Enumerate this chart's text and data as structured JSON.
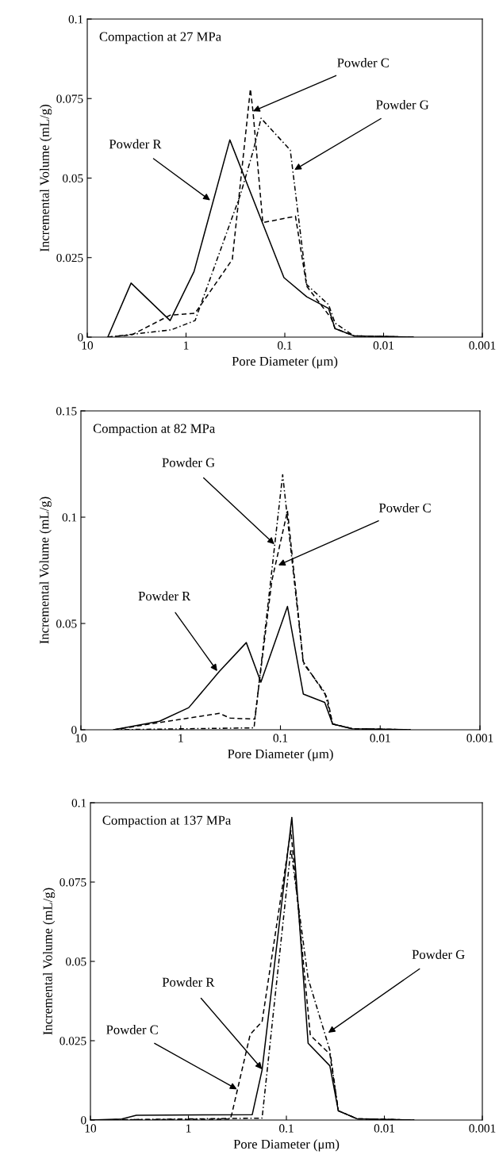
{
  "chart_data": [
    {
      "type": "line",
      "title": "Compaction at 27 MPa",
      "xlabel": "Pore Diameter (μm)",
      "ylabel": "Incremental Volume (mL/g)",
      "log": "x",
      "xlim": [
        10,
        0.001
      ],
      "xticks": [
        10,
        1,
        0.1,
        0.01,
        0.001
      ],
      "ylim": [
        0,
        0.1
      ],
      "yticks": [
        0,
        0.025,
        0.05,
        0.075,
        0.1
      ],
      "grid": false,
      "marker": "none",
      "series": [
        {
          "color": "#000000",
          "line_style": "solid",
          "x": [
            6.2,
            3.6,
            1.45,
            0.83,
            0.36,
            0.102,
            0.06,
            0.036,
            0.031,
            0.02,
            0.005
          ],
          "values": [
            0,
            0.017,
            0.0052,
            0.0206,
            0.062,
            0.0187,
            0.0127,
            0.009,
            0.0027,
            0.0004,
            0
          ]
        },
        {
          "color": "#000000",
          "line_style": "dashed",
          "x": [
            6.2,
            3.55,
            1.45,
            0.81,
            0.34,
            0.223,
            0.21,
            0.167,
            0.078,
            0.06,
            0.034,
            0.031,
            0.02,
            0.005
          ],
          "values": [
            0,
            0.0007,
            0.0069,
            0.0075,
            0.0244,
            0.078,
            0.071,
            0.036,
            0.038,
            0.016,
            0.006,
            0.0027,
            0.0004,
            0
          ]
        },
        {
          "color": "#000000",
          "line_style": "dashdot",
          "x": [
            6.2,
            1.41,
            0.81,
            0.28,
            0.207,
            0.174,
            0.088,
            0.06,
            0.036,
            0.031,
            0.02,
            0.005
          ],
          "values": [
            0,
            0.0023,
            0.0052,
            0.045,
            0.059,
            0.0688,
            0.0588,
            0.0165,
            0.0102,
            0.0044,
            0.0004,
            0
          ]
        }
      ],
      "annotations": [
        {
          "text": "Powder R",
          "x": 0.57,
          "y": 0.043
        },
        {
          "text": "Powder C",
          "x": 0.21,
          "y": 0.071
        },
        {
          "text": "Powder G",
          "x": 0.08,
          "y": 0.0526
        }
      ]
    },
    {
      "type": "line",
      "title": "Compaction at 82 MPa",
      "xlabel": "Pore Diameter (μm)",
      "ylabel": "Incremental Volume (mL/g)",
      "log": "x",
      "xlim": [
        10,
        0.001
      ],
      "xticks": [
        10,
        1,
        0.1,
        0.01,
        0.001
      ],
      "ylim": [
        0,
        0.15
      ],
      "yticks": [
        0,
        0.05,
        0.1,
        0.15
      ],
      "grid": false,
      "marker": "none",
      "series": [
        {
          "color": "#000000",
          "line_style": "solid",
          "x": [
            4.7,
            1.63,
            0.83,
            0.41,
            0.22,
            0.157,
            0.085,
            0.059,
            0.036,
            0.03,
            0.019,
            0.005
          ],
          "values": [
            0,
            0.004,
            0.0104,
            0.0274,
            0.041,
            0.0224,
            0.058,
            0.0168,
            0.0129,
            0.0027,
            0.0005,
            0
          ]
        },
        {
          "color": "#000000",
          "line_style": "dashed",
          "x": [
            4.7,
            1.63,
            0.41,
            0.32,
            0.181,
            0.122,
            0.085,
            0.059,
            0.034,
            0.03,
            0.019,
            0.005
          ],
          "values": [
            0,
            0.0034,
            0.0077,
            0.0055,
            0.005,
            0.07,
            0.103,
            0.032,
            0.0152,
            0.0027,
            0.0005,
            0
          ]
        },
        {
          "color": "#000000",
          "line_style": "dashdot",
          "x": [
            4.7,
            0.184,
            0.095,
            0.059,
            0.036,
            0.03,
            0.019,
            0.005
          ],
          "values": [
            0,
            0.0009,
            0.12,
            0.0313,
            0.0177,
            0.0027,
            0.0005,
            0
          ]
        }
      ],
      "annotations": [
        {
          "text": "Powder G",
          "x": 0.115,
          "y": 0.0873
        },
        {
          "text": "Powder C",
          "x": 0.105,
          "y": 0.0774
        },
        {
          "text": "Powder R",
          "x": 0.43,
          "y": 0.0276
        }
      ]
    },
    {
      "type": "line",
      "title": "Compaction at 137 MPa",
      "xlabel": "Pore Diameter (μm)",
      "ylabel": "Incremental Volume (mL/g)",
      "log": "x",
      "xlim": [
        10,
        0.001
      ],
      "xticks": [
        10,
        1,
        0.1,
        0.01,
        0.001
      ],
      "ylim": [
        0,
        0.1
      ],
      "yticks": [
        0,
        0.025,
        0.05,
        0.075,
        0.1
      ],
      "grid": false,
      "marker": "none",
      "series": [
        {
          "color": "#000000",
          "line_style": "solid",
          "x": [
            10,
            4.8,
            3.4,
            0.223,
            0.177,
            0.088,
            0.06,
            0.036,
            0.0295,
            0.019,
            0.005
          ],
          "values": [
            0,
            0.0003,
            0.0015,
            0.0017,
            0.0158,
            0.0954,
            0.0242,
            0.0171,
            0.0029,
            0.0004,
            0
          ]
        },
        {
          "color": "#000000",
          "line_style": "dashed",
          "x": [
            10,
            0.374,
            0.36,
            0.234,
            0.177,
            0.09,
            0.057,
            0.036,
            0.0295,
            0.019,
            0.005
          ],
          "values": [
            0,
            0.0003,
            0.002,
            0.027,
            0.031,
            0.0912,
            0.0267,
            0.0208,
            0.0029,
            0.0004,
            0
          ]
        },
        {
          "color": "#000000",
          "line_style": "dashdot",
          "x": [
            10,
            0.177,
            0.09,
            0.06,
            0.036,
            0.0295,
            0.019,
            0.005
          ],
          "values": [
            0,
            0.0006,
            0.0854,
            0.0446,
            0.022,
            0.0029,
            0.0004,
            0
          ]
        }
      ],
      "annotations": [
        {
          "text": "Powder G",
          "x": 0.0374,
          "y": 0.0275
        },
        {
          "text": "Powder R",
          "x": 0.177,
          "y": 0.016
        },
        {
          "text": "Powder C",
          "x": 0.32,
          "y": 0.0097
        }
      ]
    }
  ]
}
